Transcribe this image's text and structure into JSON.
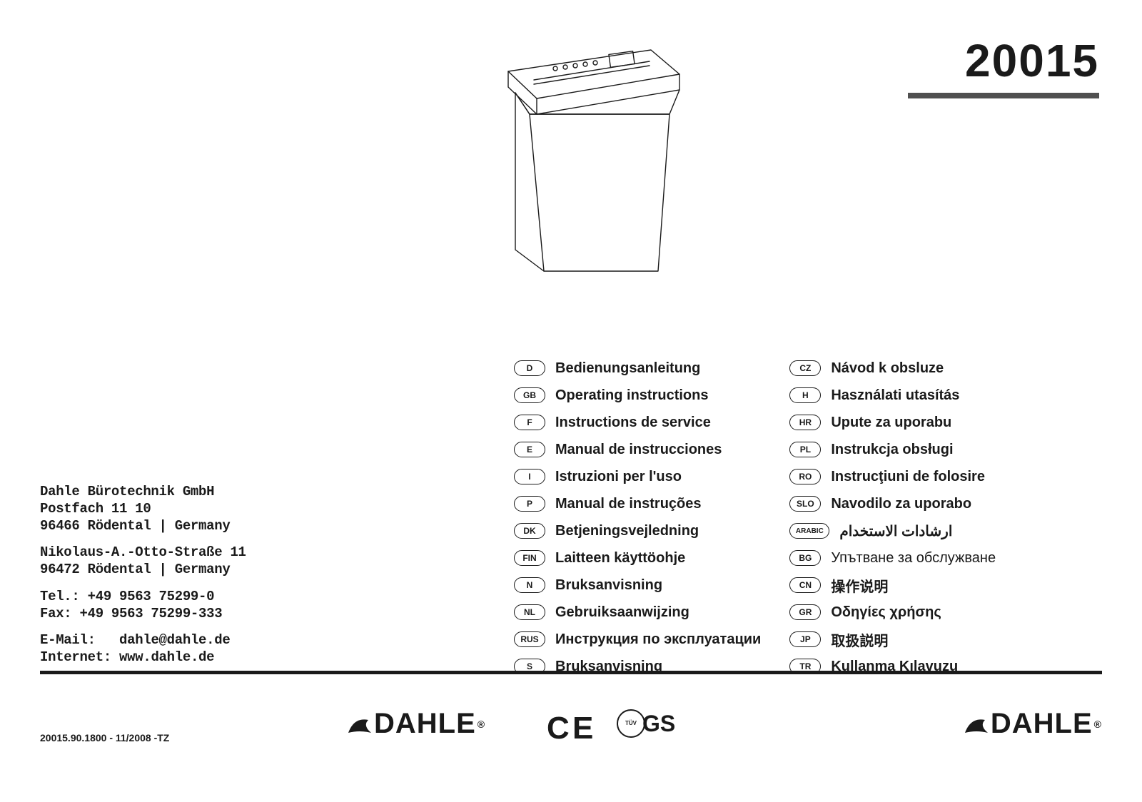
{
  "model_number": "20015",
  "company": {
    "name": "Dahle Bürotechnik GmbH",
    "postbox": "Postfach 11 10",
    "postbox_city": "96466 Rödental | Germany",
    "street": "Nikolaus-A.-Otto-Straße 11",
    "street_city": "96472 Rödental | Germany",
    "tel": "Tel.: +49 9563 75299-0",
    "fax": "Fax: +49 9563 75299-333",
    "email_label": "E-Mail:",
    "email": "dahle@dahle.de",
    "internet_label": "Internet:",
    "internet": "www.dahle.de"
  },
  "doc_code": "20015.90.1800 - 11/2008 -TZ",
  "brand": "DAHLE",
  "ce_text": "C E",
  "tuv_text": "TÜV",
  "gs_text": "GS",
  "languages_col1": [
    {
      "code": "D",
      "label": "Bedienungsanleitung"
    },
    {
      "code": "GB",
      "label": "Operating instructions"
    },
    {
      "code": "F",
      "label": "Instructions de service"
    },
    {
      "code": "E",
      "label": "Manual de instrucciones"
    },
    {
      "code": "I",
      "label": "Istruzioni per l'uso"
    },
    {
      "code": "P",
      "label": "Manual de instruções"
    },
    {
      "code": "DK",
      "label": "Betjeningsvejledning"
    },
    {
      "code": "FIN",
      "label": "Laitteen käyttöohje"
    },
    {
      "code": "N",
      "label": "Bruksanvisning"
    },
    {
      "code": "NL",
      "label": "Gebruiksaanwijzing"
    },
    {
      "code": "RUS",
      "label": "Инструкция по эксплуатации"
    },
    {
      "code": "S",
      "label": "Bruksanvisning"
    }
  ],
  "languages_col2": [
    {
      "code": "CZ",
      "label": "Návod k obsluze",
      "bold": true
    },
    {
      "code": "H",
      "label": "Használati utasítás",
      "bold": true
    },
    {
      "code": "HR",
      "label": "Upute za uporabu",
      "bold": true
    },
    {
      "code": "PL",
      "label": "Instrukcja obsługi",
      "bold": true
    },
    {
      "code": "RO",
      "label": "Instrucţiuni de folosire",
      "bold": true
    },
    {
      "code": "SLO",
      "label": "Navodilo za uporabo",
      "bold": true
    },
    {
      "code": "ARABIC",
      "label": "ارشادات الاستخدام",
      "bold": true,
      "wide": true
    },
    {
      "code": "BG",
      "label": "Упътване за обслужване",
      "bold": false
    },
    {
      "code": "CN",
      "label": "操作说明",
      "bold": true
    },
    {
      "code": "GR",
      "label": "Οδηγίες χρήσης",
      "bold": true
    },
    {
      "code": "JP",
      "label": "取扱説明",
      "bold": true
    },
    {
      "code": "TR",
      "label": "Kullanma Kılavuzu",
      "bold": true
    }
  ],
  "colors": {
    "text": "#1a1a1a",
    "underline": "#505050",
    "background": "#ffffff"
  }
}
